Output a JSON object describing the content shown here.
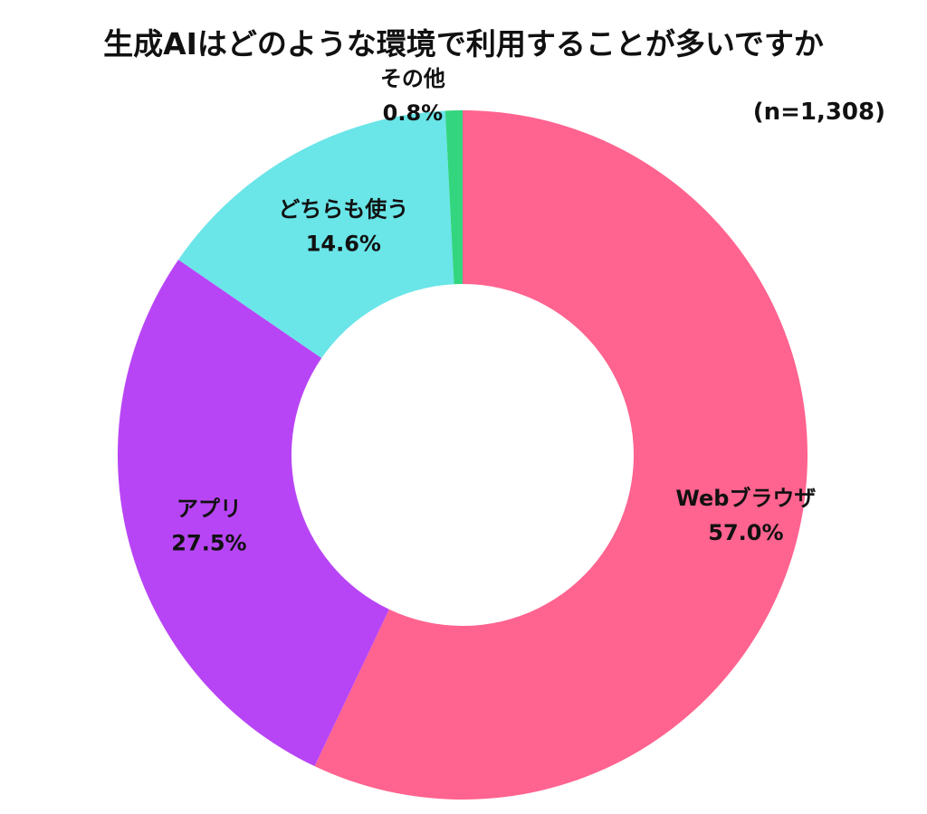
{
  "chart_data": {
    "type": "pie",
    "variant": "donut",
    "title": "生成AIはどのような環境で利用することが多いですか",
    "sample_size_label": "(n=1,308)",
    "start_angle_deg": 0,
    "direction": "clockwise",
    "unit": "%",
    "slices": [
      {
        "label": "Webブラウザ",
        "value": 57.0,
        "value_label": "57.0%",
        "color": "#FF638F"
      },
      {
        "label": "アプリ",
        "value": 27.5,
        "value_label": "27.5%",
        "color": "#B845F5"
      },
      {
        "label": "どちらも使う",
        "value": 14.6,
        "value_label": "14.6%",
        "color": "#6AE5E8"
      },
      {
        "label": "その他",
        "value": 0.8,
        "value_label": "0.8%",
        "color": "#33D67F"
      }
    ]
  }
}
